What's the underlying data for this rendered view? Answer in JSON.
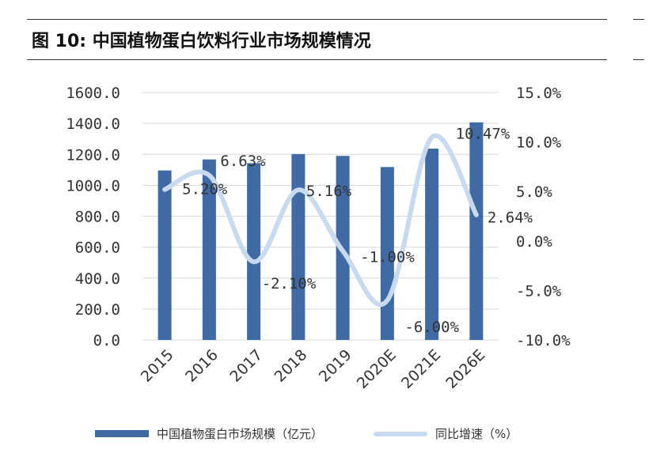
{
  "title": "图 10: 中国植物蛋白饮料行业市场规模情况",
  "colors": {
    "bar": "#3f6aa3",
    "line": "#c7daf0",
    "grid": "#d9d9d9"
  },
  "chart_data": {
    "type": "bar",
    "categories": [
      "2015",
      "2016",
      "2017",
      "2018",
      "2019",
      "2020E",
      "2021E",
      "2026E"
    ],
    "series": [
      {
        "name": "中国植物蛋白市场规模（亿元）",
        "type": "bar",
        "axis": "left",
        "values": [
          1096,
          1167,
          1143,
          1202,
          1190,
          1118,
          1237,
          1407
        ]
      },
      {
        "name": "同比增速（%）",
        "type": "line",
        "axis": "right",
        "values": [
          5.2,
          6.63,
          -2.1,
          5.16,
          -1.0,
          -6.0,
          10.47,
          2.64
        ],
        "labels": [
          "5.20%",
          "6.63%",
          "-2.10%",
          "5.16%",
          "-1.00%",
          "-6.00%",
          "10.47%",
          "2.64%"
        ]
      }
    ],
    "y_left": {
      "range": [
        0,
        1600
      ],
      "ticks": [
        "0.0",
        "200.0",
        "400.0",
        "600.0",
        "800.0",
        "1000.0",
        "1200.0",
        "1400.0",
        "1600.0"
      ]
    },
    "y_right": {
      "range": [
        -10,
        15
      ],
      "ticks": [
        "-10.0%",
        "-5.0%",
        "0.0%",
        "5.0%",
        "10.0%",
        "15.0%"
      ]
    },
    "grid": true,
    "legend_position": "bottom"
  }
}
